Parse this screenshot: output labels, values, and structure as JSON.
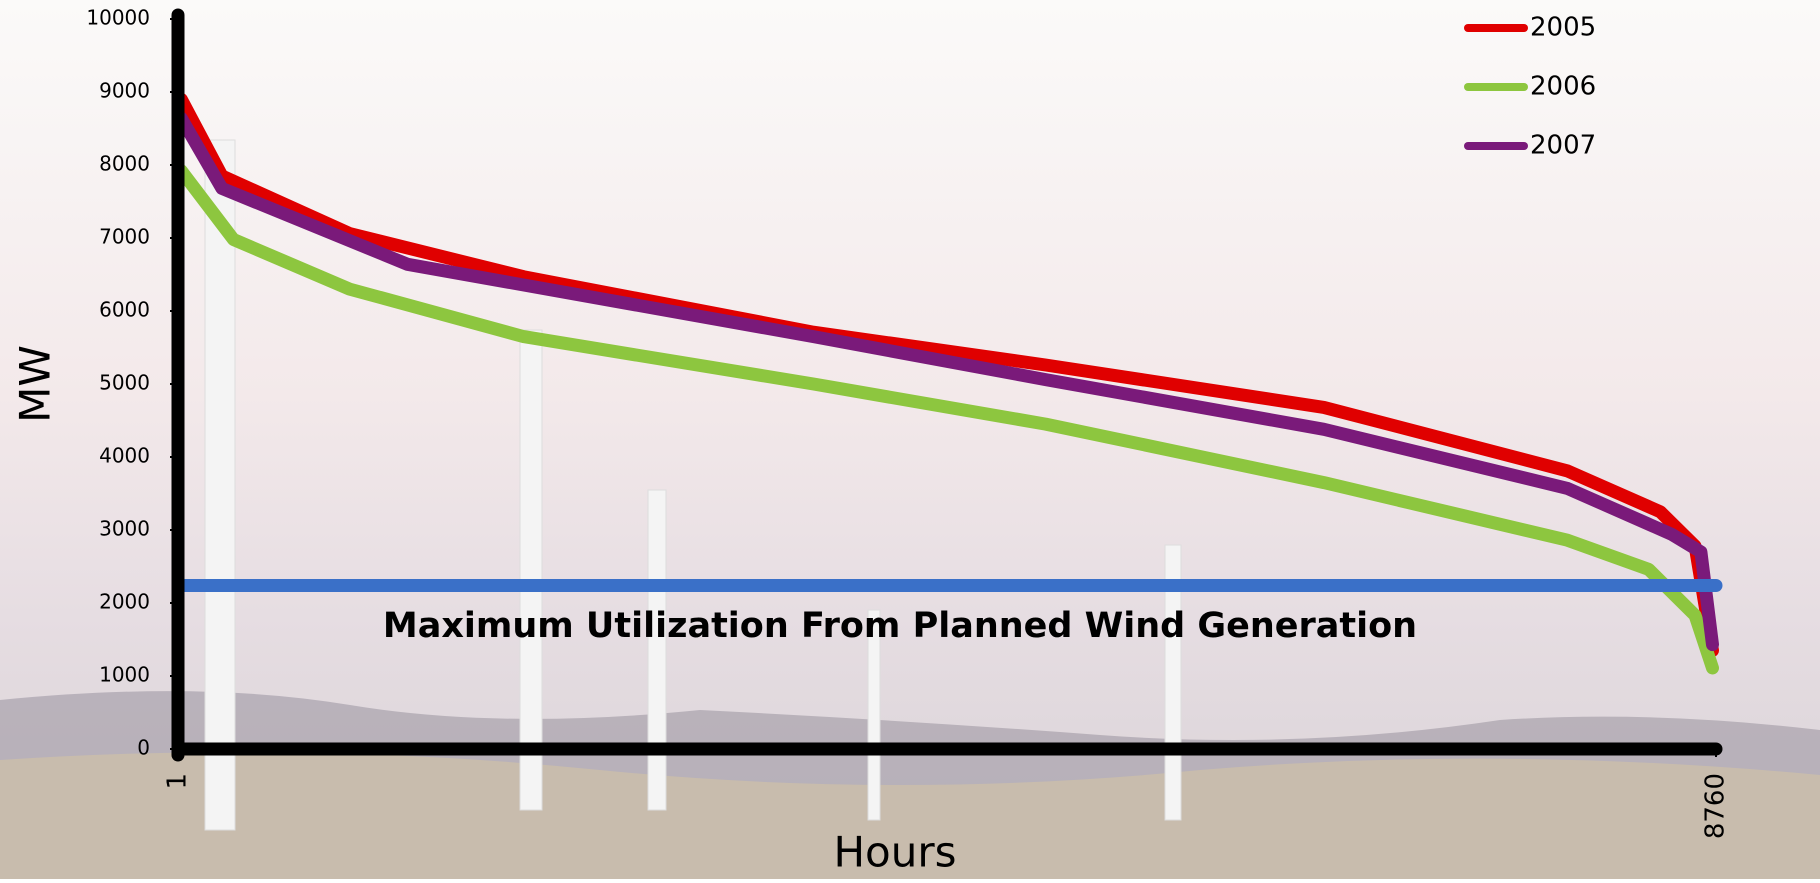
{
  "chart_data": {
    "type": "line",
    "x_label": "Hours",
    "y_label": "MW",
    "xlim": [
      1,
      8760
    ],
    "xticks": [
      1,
      8760
    ],
    "ylim": [
      0,
      10000
    ],
    "yticks": [
      0,
      1000,
      2000,
      3000,
      4000,
      5000,
      6000,
      7000,
      8000,
      9000,
      10000
    ],
    "legend": "top-right",
    "series": [
      {
        "name": "2005",
        "color": "#e00000",
        "x": [
          20,
          251,
          978,
          1969,
          3620,
          4942,
          6527,
          7914,
          8443,
          8641,
          8740
        ],
        "values": [
          8900,
          7850,
          7060,
          6470,
          5710,
          5260,
          4680,
          3810,
          3250,
          2780,
          1350
        ]
      },
      {
        "name": "2006",
        "color": "#8dc63f",
        "x": [
          20,
          317,
          978,
          1969,
          3620,
          4942,
          6527,
          7914,
          8377,
          8641,
          8740
        ],
        "values": [
          7920,
          6980,
          6300,
          5650,
          5000,
          4450,
          3650,
          2860,
          2460,
          1830,
          1110
        ]
      },
      {
        "name": "2007",
        "color": "#7a1a7a",
        "x": [
          20,
          251,
          1308,
          3620,
          4942,
          6527,
          7914,
          8509,
          8674,
          8740
        ],
        "values": [
          8640,
          7680,
          6640,
          5650,
          5060,
          4380,
          3570,
          2940,
          2700,
          1430
        ]
      }
    ],
    "reference_line": {
      "value": 2240,
      "color": "#3a70c8",
      "label": "Maximum Utilization From Planned Wind Generation"
    }
  }
}
